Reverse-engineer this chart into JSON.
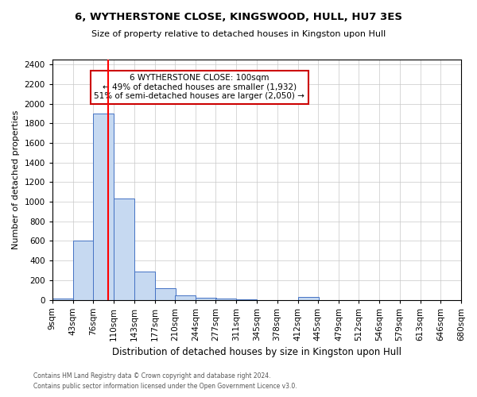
{
  "title1": "6, WYTHERSTONE CLOSE, KINGSWOOD, HULL, HU7 3ES",
  "title2": "Size of property relative to detached houses in Kingston upon Hull",
  "xlabel": "Distribution of detached houses by size in Kingston upon Hull",
  "ylabel": "Number of detached properties",
  "footnote1": "Contains HM Land Registry data © Crown copyright and database right 2024.",
  "footnote2": "Contains public sector information licensed under the Open Government Licence v3.0.",
  "bins": [
    9,
    43,
    76,
    110,
    143,
    177,
    210,
    244,
    277,
    311,
    345,
    378,
    412,
    445,
    479,
    512,
    546,
    579,
    613,
    646,
    680
  ],
  "values": [
    15,
    600,
    1900,
    1030,
    290,
    120,
    45,
    20,
    10,
    5,
    0,
    0,
    25,
    0,
    0,
    0,
    0,
    0,
    0,
    0
  ],
  "bar_color": "#c6d9f1",
  "bar_edge_color": "#4472c4",
  "grid_color": "#c8c8c8",
  "bg_color": "#ffffff",
  "red_line_x": 100,
  "annotation_line1": "6 WYTHERSTONE CLOSE: 100sqm",
  "annotation_line2": "← 49% of detached houses are smaller (1,932)",
  "annotation_line3": "51% of semi-detached houses are larger (2,050) →",
  "annotation_box_color": "#ffffff",
  "annotation_box_edge": "#cc0000",
  "ylim": [
    0,
    2450
  ],
  "yticks": [
    0,
    200,
    400,
    600,
    800,
    1000,
    1200,
    1400,
    1600,
    1800,
    2000,
    2200,
    2400
  ],
  "title1_fontsize": 9.5,
  "title2_fontsize": 8,
  "ylabel_fontsize": 8,
  "xlabel_fontsize": 8.5,
  "tick_fontsize": 7.5,
  "footnote_fontsize": 5.5
}
